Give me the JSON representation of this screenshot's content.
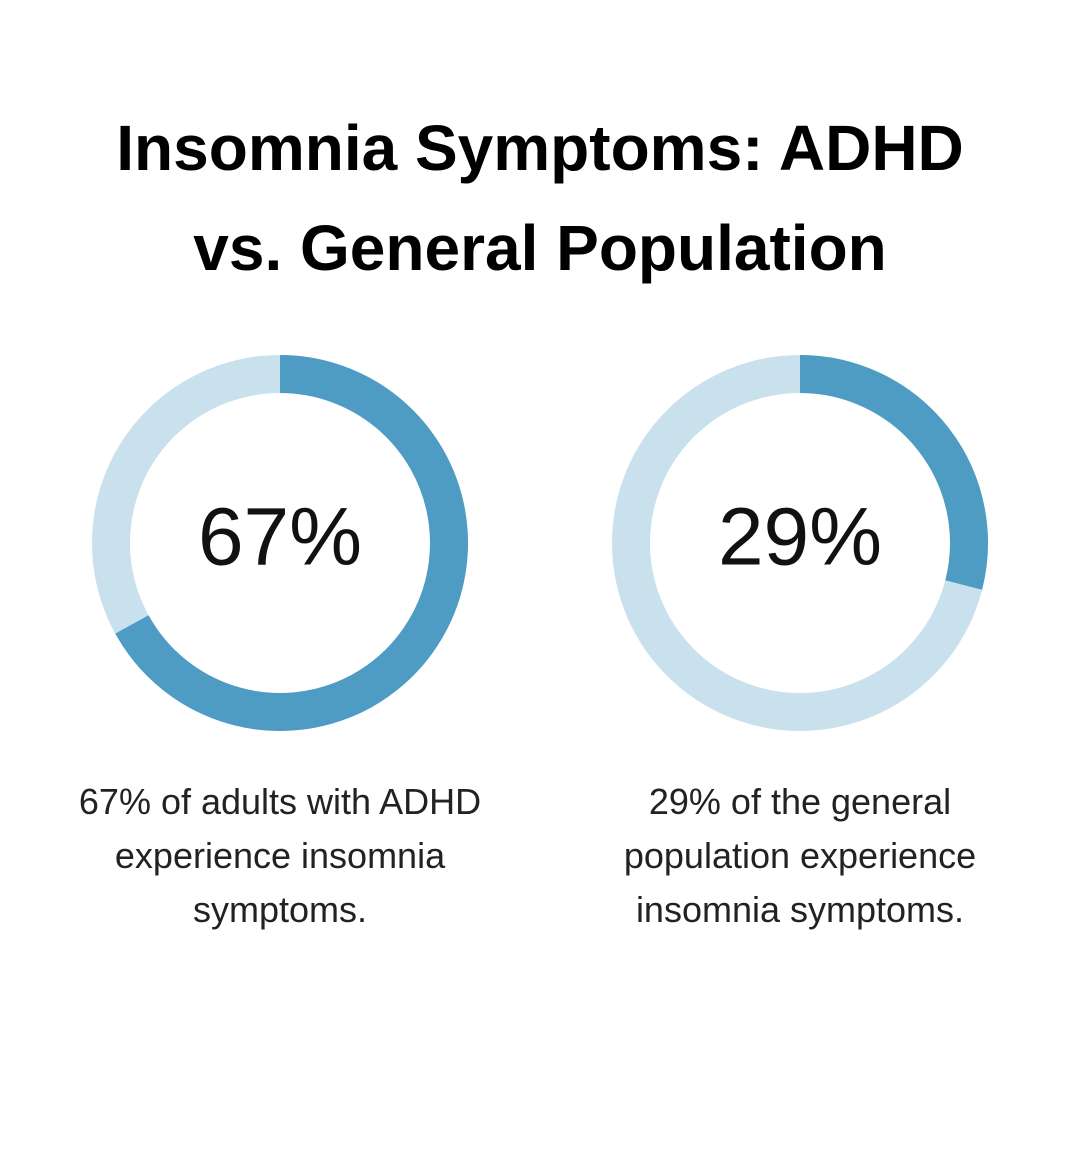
{
  "title": "Insomnia Symptoms: ADHD vs. General Population",
  "chart_data": [
    {
      "type": "donut",
      "values": [
        67
      ],
      "value_labels": [
        "67%"
      ],
      "color": "#4e9bc4",
      "track_color": "#c9e1ec",
      "caption": "67% of adults with ADHD experience insomnia symptoms."
    },
    {
      "type": "donut",
      "values": [
        29
      ],
      "value_labels": [
        "29%"
      ],
      "color": "#4e9bc4",
      "track_color": "#c9e1ec",
      "caption": "29% of the general population experience insomnia symptoms."
    }
  ]
}
